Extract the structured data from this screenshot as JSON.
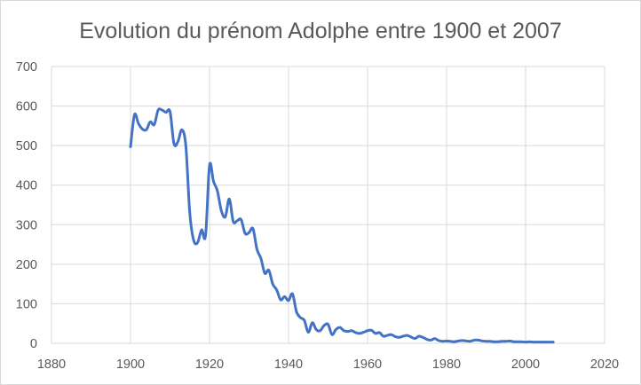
{
  "chart_data": {
    "type": "line",
    "title": "Evolution du prénom Adolphe entre 1900 et 2007",
    "xlabel": "",
    "ylabel": "",
    "xlim": [
      1880,
      2020
    ],
    "ylim": [
      0,
      700
    ],
    "x_ticks": [
      1880,
      1900,
      1920,
      1940,
      1960,
      1980,
      2000,
      2020
    ],
    "y_ticks": [
      0,
      100,
      200,
      300,
      400,
      500,
      600,
      700
    ],
    "x_tick_labels": [
      "1880",
      "1900",
      "1920",
      "1940",
      "1960",
      "1980",
      "2000",
      "2020"
    ],
    "y_tick_labels": [
      "0",
      "100",
      "200",
      "300",
      "400",
      "500",
      "600",
      "700"
    ],
    "grid": "horizontal-and-vertical",
    "legend": "none",
    "line_color": "#4472c4",
    "grid_color": "#d9d9d9",
    "series": [
      {
        "x": [
          1900,
          1901,
          1902,
          1903,
          1904,
          1905,
          1906,
          1907,
          1908,
          1909,
          1910,
          1911,
          1912,
          1913,
          1914,
          1915,
          1916,
          1917,
          1918,
          1919,
          1920,
          1921,
          1922,
          1923,
          1924,
          1925,
          1926,
          1927,
          1928,
          1929,
          1930,
          1931,
          1932,
          1933,
          1934,
          1935,
          1936,
          1937,
          1938,
          1939,
          1940,
          1941,
          1942,
          1943,
          1944,
          1945,
          1946,
          1947,
          1948,
          1949,
          1950,
          1951,
          1952,
          1953,
          1954,
          1955,
          1956,
          1957,
          1958,
          1959,
          1960,
          1961,
          1962,
          1963,
          1964,
          1965,
          1966,
          1967,
          1968,
          1969,
          1970,
          1971,
          1972,
          1973,
          1974,
          1975,
          1976,
          1977,
          1978,
          1979,
          1980,
          1981,
          1982,
          1983,
          1984,
          1985,
          1986,
          1987,
          1988,
          1989,
          1990,
          1991,
          1992,
          1993,
          1994,
          1995,
          1996,
          1997,
          1998,
          1999,
          2000,
          2001,
          2002,
          2003,
          2004,
          2005,
          2006,
          2007
        ],
        "values": [
          497,
          578,
          556,
          542,
          540,
          560,
          553,
          590,
          590,
          584,
          586,
          505,
          510,
          540,
          500,
          330,
          260,
          255,
          287,
          273,
          450,
          410,
          385,
          335,
          320,
          365,
          308,
          310,
          313,
          278,
          280,
          290,
          238,
          215,
          177,
          185,
          150,
          135,
          110,
          118,
          108,
          125,
          80,
          65,
          58,
          28,
          52,
          35,
          32,
          45,
          48,
          22,
          35,
          40,
          32,
          30,
          32,
          27,
          25,
          28,
          32,
          33,
          25,
          27,
          18,
          20,
          22,
          17,
          15,
          18,
          20,
          16,
          12,
          18,
          15,
          10,
          8,
          12,
          7,
          5,
          6,
          5,
          4,
          6,
          7,
          6,
          5,
          8,
          8,
          6,
          5,
          5,
          4,
          4,
          5,
          5,
          6,
          4,
          4,
          4,
          3,
          4,
          3,
          3,
          3,
          3,
          3,
          3
        ]
      }
    ]
  }
}
